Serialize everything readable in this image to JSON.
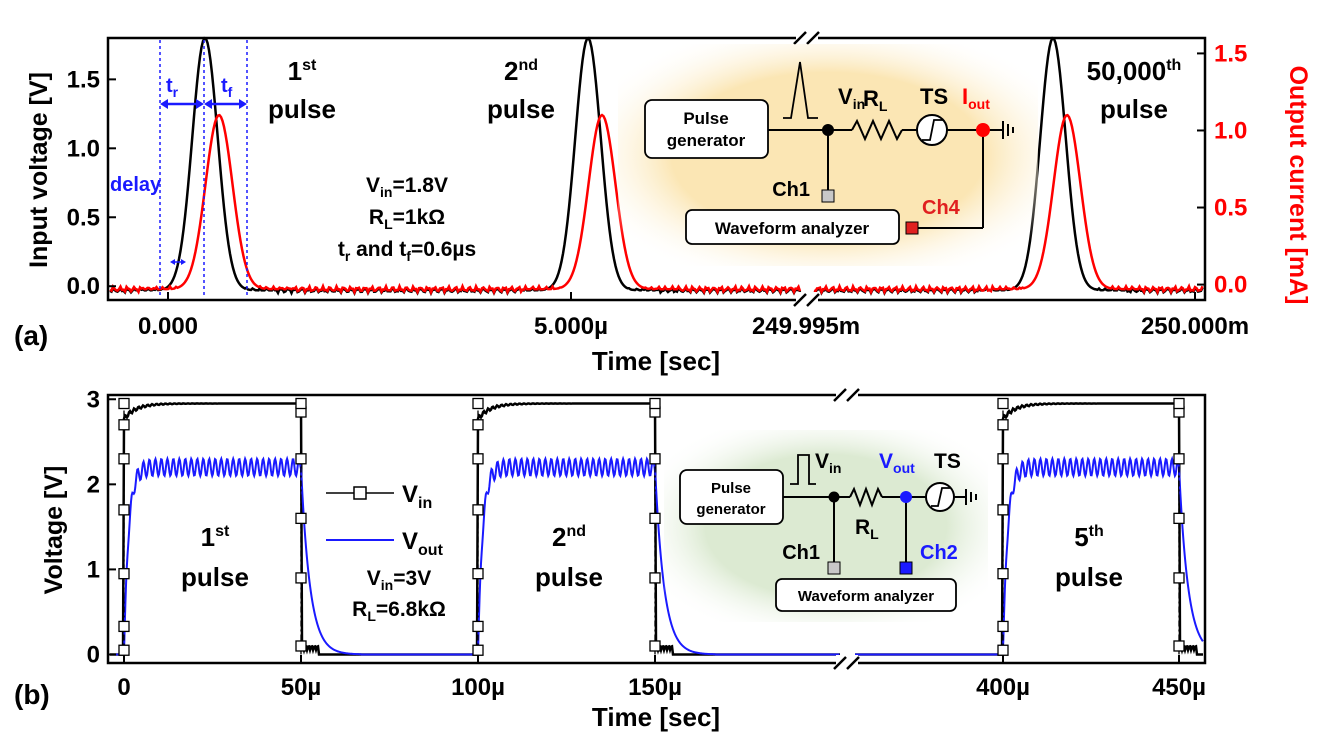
{
  "colors": {
    "black": "#000000",
    "red": "#ff0000",
    "blue": "#1a1aff",
    "inset_a_bg": "#fbe6b4",
    "inset_b_bg": "#dcead2",
    "ch_gray": "#c8c8c8",
    "ch4_red": "#e02020",
    "ch2_blue": "#1a1aff"
  },
  "chart_data": [
    {
      "type": "line",
      "panel_label": "(a)",
      "xlabel": "Time [sec]",
      "ylabel": "Input voltage [V]",
      "y2label": "Output current [mA]",
      "ylim": [
        -0.1,
        1.8
      ],
      "y2lim": [
        -0.1,
        1.6
      ],
      "y_ticks": [
        "0.0",
        "0.5",
        "1.0",
        "1.5"
      ],
      "y_tick_values": [
        0,
        0.5,
        1.0,
        1.5
      ],
      "y2_ticks": [
        "0.0",
        "0.5",
        "1.0",
        "1.5"
      ],
      "y2_tick_values": [
        0,
        0.5,
        1.0,
        1.5
      ],
      "x_ticks": [
        "0.000",
        "5.000µ",
        "249.995m",
        "250.000m"
      ],
      "axis_break": true,
      "series": [
        {
          "name": "Input voltage",
          "color": "#000000",
          "axis": "left",
          "pulse_peak": 1.8,
          "baseline": -0.03
        },
        {
          "name": "Output current",
          "color": "#ff0000",
          "axis": "right",
          "pulse_peak": 1.1,
          "baseline": -0.03
        }
      ],
      "pulses": [
        {
          "label_line1": "1",
          "label_sup": "st",
          "label_line2": "pulse"
        },
        {
          "label_line1": "2",
          "label_sup": "nd",
          "label_line2": "pulse"
        },
        {
          "label_line1": "50,000",
          "label_sup": "th",
          "label_line2": "pulse"
        }
      ],
      "annotations": {
        "tr": "t",
        "tr_sub": "r",
        "tf": "t",
        "tf_sub": "f",
        "delay": "delay",
        "params": [
          {
            "main": "V",
            "sub": "in",
            "rest": "=1.8V"
          },
          {
            "main": "R",
            "sub": "L",
            "rest": "=1kΩ"
          },
          {
            "main": "t",
            "sub": "r",
            "rest": " and t",
            "sub2": "f",
            "rest2": "=0.6µs"
          }
        ]
      },
      "inset": {
        "pulse_gen": [
          "Pulse",
          "generator"
        ],
        "vin": "V",
        "vin_sub": "in",
        "rl": "R",
        "rl_sub": "L",
        "ts": "TS",
        "iout": "I",
        "iout_sub": "out",
        "ch1": "Ch1",
        "ch4": "Ch4",
        "analyzer": "Waveform analyzer"
      }
    },
    {
      "type": "line",
      "panel_label": "(b)",
      "xlabel": "Time [sec]",
      "ylabel": "Voltage [V]",
      "ylim": [
        -0.1,
        3.05
      ],
      "y_ticks": [
        "0",
        "1",
        "2",
        "3"
      ],
      "y_tick_values": [
        0,
        1,
        2,
        3
      ],
      "x_ticks": [
        "0",
        "50µ",
        "100µ",
        "150µ",
        "400µ",
        "450µ"
      ],
      "axis_break": true,
      "legend_position": "center-left",
      "series": [
        {
          "name": "V",
          "name_sub": "in",
          "color": "#000000",
          "marker": "open-square",
          "high": 2.95,
          "low": 0.0
        },
        {
          "name": "V",
          "name_sub": "out",
          "color": "#1a1aff",
          "high": 2.2,
          "ripple": 0.1,
          "low": 0.0
        }
      ],
      "pulses": [
        {
          "label_line1": "1",
          "label_sup": "st",
          "label_line2": "pulse"
        },
        {
          "label_line1": "2",
          "label_sup": "nd",
          "label_line2": "pulse"
        },
        {
          "label_line1": "5",
          "label_sup": "th",
          "label_line2": "pulse"
        }
      ],
      "annotations": {
        "params": [
          {
            "main": "V",
            "sub": "in",
            "rest": "=3V"
          },
          {
            "main": "R",
            "sub": "L",
            "rest": "=6.8kΩ"
          }
        ]
      },
      "inset": {
        "pulse_gen": [
          "Pulse",
          "generator"
        ],
        "vin": "V",
        "vin_sub": "in",
        "vout": "V",
        "vout_sub": "out",
        "ts": "TS",
        "rl": "R",
        "rl_sub": "L",
        "ch1": "Ch1",
        "ch2": "Ch2",
        "analyzer": "Waveform analyzer"
      }
    }
  ]
}
